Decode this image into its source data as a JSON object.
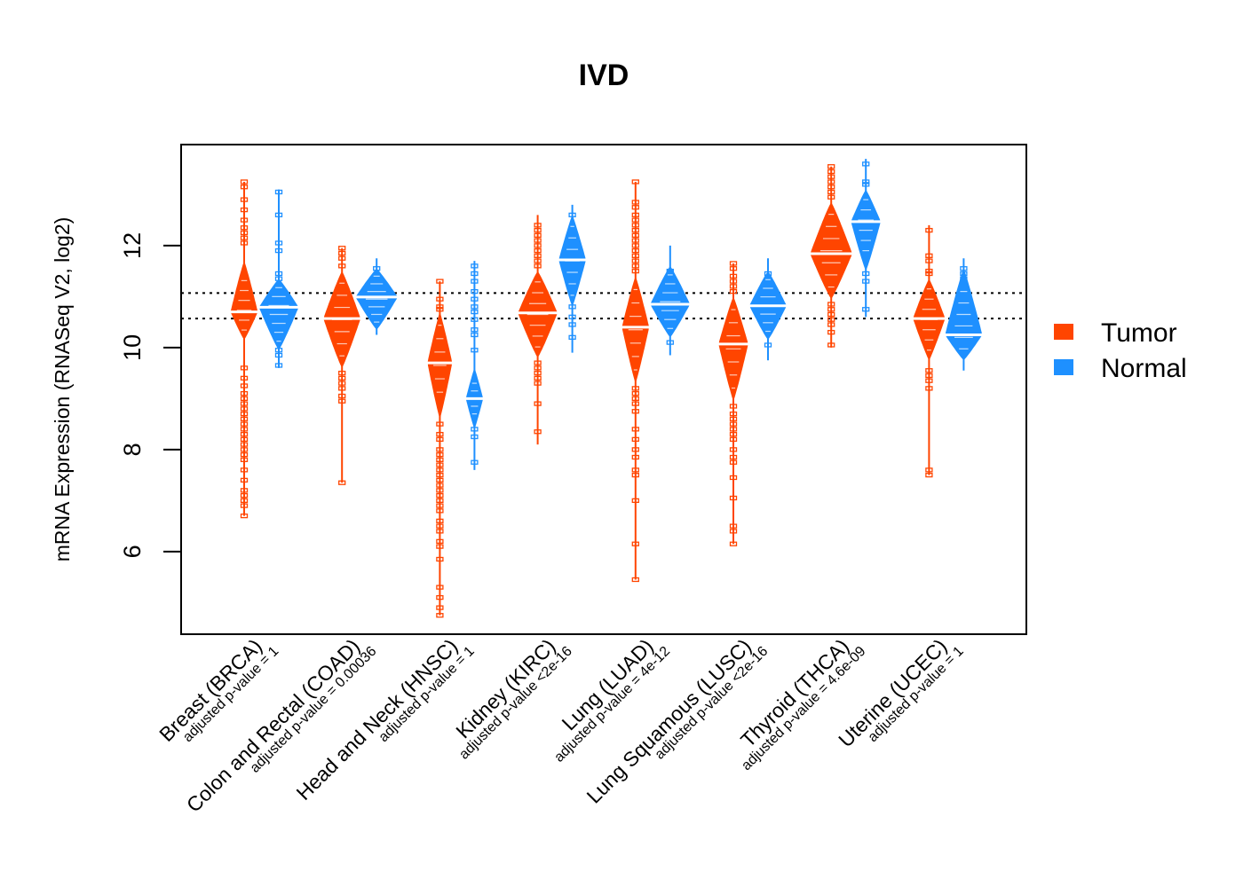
{
  "chart_data": {
    "type": "violin",
    "title": "IVD",
    "xlabel": "",
    "ylabel": "mRNA Expression (RNASeq V2, log2)",
    "ylim": [
      4.38,
      13.98
    ],
    "yticks": [
      6,
      8,
      10,
      12
    ],
    "reference_lines": [
      11.07,
      10.57
    ],
    "grid": false,
    "legend": {
      "position": "right",
      "entries": [
        {
          "label": "Tumor",
          "color": "#FF4500"
        },
        {
          "label": "Normal",
          "color": "#1E90FF"
        }
      ]
    },
    "categories": [
      {
        "name": "Breast (BRCA)",
        "pvalue": "adjusted p-value = 1"
      },
      {
        "name": "Colon and Rectal (COAD)",
        "pvalue": "adjusted p-value = 0.00036"
      },
      {
        "name": "Head and Neck (HNSC)",
        "pvalue": "adjusted p-value = 1"
      },
      {
        "name": "Kidney (KIRC)",
        "pvalue": "adjusted p-value <2e-16"
      },
      {
        "name": "Lung (LUAD)",
        "pvalue": "adjusted p-value = 4e-12"
      },
      {
        "name": "Lung Squamous (LUSC)",
        "pvalue": "adjusted p-value <2e-16"
      },
      {
        "name": "Thyroid (THCA)",
        "pvalue": "adjusted p-value = 4.6e-09"
      },
      {
        "name": "Uterine (UCEC)",
        "pvalue": "adjusted p-value = 1"
      }
    ],
    "series": [
      {
        "name": "Tumor",
        "color": "#FF4500",
        "groups": [
          {
            "min": 6.7,
            "max": 13.25,
            "body": [
              10.15,
              11.7
            ],
            "median": 10.7,
            "width": 0.55,
            "outliers": [
              13.25,
              13.15,
              12.9,
              12.7,
              12.5,
              12.35,
              12.25,
              12.15,
              12.05,
              9.6,
              9.4,
              9.25,
              9.1,
              9.0,
              8.9,
              8.8,
              8.7,
              8.6,
              8.5,
              8.4,
              8.3,
              8.2,
              8.1,
              8.0,
              7.9,
              7.8,
              7.6,
              7.4,
              7.2,
              7.1,
              7.0,
              6.9,
              6.7
            ]
          },
          {
            "min": 7.35,
            "max": 11.95,
            "body": [
              9.6,
              11.5
            ],
            "median": 10.57,
            "width": 0.75,
            "outliers": [
              11.95,
              11.85,
              11.75,
              11.6,
              9.5,
              9.4,
              9.3,
              9.2,
              9.05,
              8.95,
              7.35
            ]
          },
          {
            "min": 4.75,
            "max": 11.3,
            "body": [
              8.6,
              10.7
            ],
            "median": 9.7,
            "width": 0.5,
            "outliers": [
              11.3,
              10.95,
              10.8,
              10.75,
              8.5,
              8.3,
              8.2,
              8.0,
              7.9,
              7.8,
              7.7,
              7.6,
              7.5,
              7.4,
              7.3,
              7.2,
              7.1,
              7.0,
              6.9,
              6.8,
              6.6,
              6.5,
              6.4,
              6.2,
              6.1,
              5.85,
              5.3,
              5.1,
              4.9,
              4.75
            ]
          },
          {
            "min": 8.1,
            "max": 12.6,
            "body": [
              9.8,
              11.5
            ],
            "median": 10.68,
            "width": 0.8,
            "outliers": [
              12.4,
              12.3,
              12.2,
              12.1,
              12.0,
              11.9,
              11.8,
              11.7,
              11.6,
              9.7,
              9.6,
              9.5,
              9.4,
              9.3,
              8.9,
              8.35
            ]
          },
          {
            "min": 5.45,
            "max": 13.25,
            "body": [
              9.3,
              11.4
            ],
            "median": 10.4,
            "width": 0.55,
            "outliers": [
              13.25,
              12.85,
              12.75,
              12.6,
              12.5,
              12.4,
              12.3,
              12.2,
              12.1,
              12.0,
              11.9,
              11.8,
              11.7,
              11.6,
              11.5,
              9.2,
              9.1,
              9.0,
              8.9,
              8.75,
              8.4,
              8.2,
              8.0,
              7.85,
              7.6,
              7.5,
              7.0,
              6.15,
              5.45
            ]
          },
          {
            "min": 6.15,
            "max": 11.65,
            "body": [
              8.95,
              11.0
            ],
            "median": 10.07,
            "width": 0.6,
            "outliers": [
              11.65,
              11.55,
              11.4,
              11.3,
              11.2,
              11.1,
              8.85,
              8.7,
              8.6,
              8.5,
              8.4,
              8.3,
              8.2,
              8.0,
              7.85,
              7.75,
              7.45,
              7.05,
              6.5,
              6.4,
              6.15
            ]
          },
          {
            "min": 10.0,
            "max": 13.55,
            "body": [
              10.95,
              12.85
            ],
            "median": 11.84,
            "width": 0.85,
            "outliers": [
              13.55,
              13.45,
              13.35,
              13.25,
              13.15,
              13.05,
              12.95,
              10.85,
              10.75,
              10.65,
              10.55,
              10.45,
              10.3,
              10.05
            ]
          },
          {
            "min": 7.5,
            "max": 12.4,
            "body": [
              9.75,
              11.35
            ],
            "median": 10.57,
            "width": 0.65,
            "outliers": [
              12.3,
              11.8,
              11.7,
              11.5,
              11.45,
              9.55,
              9.45,
              9.35,
              9.2,
              7.6,
              7.5
            ]
          }
        ]
      },
      {
        "name": "Normal",
        "color": "#1E90FF",
        "groups": [
          {
            "min": 9.6,
            "max": 13.1,
            "body": [
              9.95,
              11.35
            ],
            "median": 10.79,
            "width": 0.8,
            "outliers": [
              13.05,
              12.6,
              12.05,
              11.9,
              11.45,
              11.35,
              9.95,
              9.85,
              9.65
            ]
          },
          {
            "min": 10.25,
            "max": 11.75,
            "body": [
              10.35,
              11.55
            ],
            "median": 10.99,
            "width": 0.85,
            "outliers": [
              11.55
            ]
          },
          {
            "min": 7.6,
            "max": 11.7,
            "body": [
              8.4,
              9.6
            ],
            "median": 9.0,
            "width": 0.35,
            "outliers": [
              11.6,
              11.45,
              11.3,
              11.1,
              10.95,
              10.8,
              10.7,
              10.55,
              10.35,
              10.25,
              9.95,
              8.4,
              8.25,
              7.75
            ]
          },
          {
            "min": 9.9,
            "max": 12.8,
            "body": [
              10.8,
              12.6
            ],
            "median": 11.72,
            "width": 0.55,
            "outliers": [
              12.6,
              10.8,
              10.6,
              10.45,
              10.2
            ]
          },
          {
            "min": 9.85,
            "max": 12.0,
            "body": [
              10.2,
              11.6
            ],
            "median": 10.85,
            "width": 0.8,
            "outliers": [
              11.5,
              10.1
            ]
          },
          {
            "min": 9.75,
            "max": 11.75,
            "body": [
              10.15,
              11.5
            ],
            "median": 10.82,
            "width": 0.75,
            "outliers": [
              11.45,
              10.05
            ]
          },
          {
            "min": 10.6,
            "max": 13.7,
            "body": [
              11.5,
              13.1
            ],
            "median": 12.47,
            "width": 0.6,
            "outliers": [
              13.6,
              13.25,
              13.2,
              11.45,
              11.3,
              10.75
            ]
          },
          {
            "min": 9.55,
            "max": 11.75,
            "body": [
              9.75,
              11.55
            ],
            "median": 10.25,
            "width": 0.75,
            "outliers": [
              11.55,
              11.45,
              11.35
            ]
          }
        ]
      }
    ]
  }
}
